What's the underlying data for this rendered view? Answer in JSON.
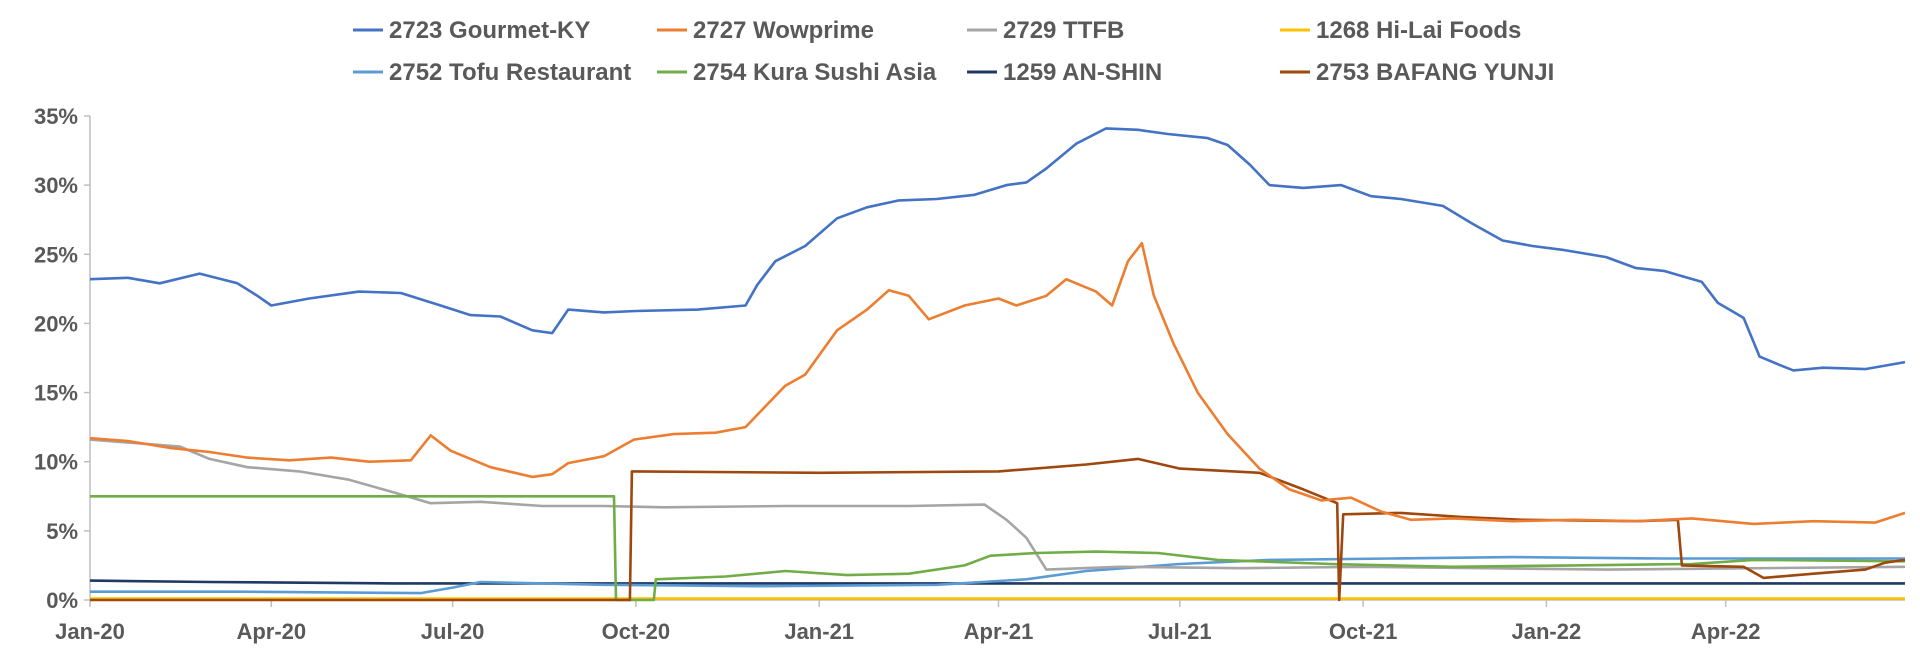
{
  "chart_data": {
    "type": "line",
    "title": "",
    "xlabel": "",
    "ylabel": "",
    "ylim": [
      0,
      35
    ],
    "y_ticks": [
      "0%",
      "5%",
      "10%",
      "15%",
      "20%",
      "25%",
      "30%",
      "35%"
    ],
    "x_ticks": [
      "Jan-20",
      "Apr-20",
      "Jul-20",
      "Oct-20",
      "Jan-21",
      "Apr-21",
      "Jul-21",
      "Oct-21",
      "Jan-22",
      "Apr-22"
    ],
    "xlim": [
      "2020-01-01",
      "2022-06-30"
    ],
    "grid": false,
    "legend": "top",
    "series": [
      {
        "name": "2723 Gourmet-KY",
        "color": "#4472C4",
        "points": [
          [
            "2020-01-01",
            23.2
          ],
          [
            "2020-01-20",
            23.3
          ],
          [
            "2020-02-05",
            22.9
          ],
          [
            "2020-02-25",
            23.6
          ],
          [
            "2020-03-15",
            22.9
          ],
          [
            "2020-03-25",
            22.0
          ],
          [
            "2020-04-01",
            21.3
          ],
          [
            "2020-04-20",
            21.8
          ],
          [
            "2020-05-15",
            22.3
          ],
          [
            "2020-06-05",
            22.2
          ],
          [
            "2020-06-25",
            21.3
          ],
          [
            "2020-07-10",
            20.6
          ],
          [
            "2020-07-25",
            20.5
          ],
          [
            "2020-08-10",
            19.5
          ],
          [
            "2020-08-20",
            19.3
          ],
          [
            "2020-08-28",
            21.0
          ],
          [
            "2020-09-15",
            20.8
          ],
          [
            "2020-10-01",
            20.9
          ],
          [
            "2020-11-01",
            21.0
          ],
          [
            "2020-11-25",
            21.3
          ],
          [
            "2020-12-01",
            22.8
          ],
          [
            "2020-12-10",
            24.5
          ],
          [
            "2020-12-25",
            25.6
          ],
          [
            "2021-01-10",
            27.6
          ],
          [
            "2021-01-25",
            28.4
          ],
          [
            "2021-02-10",
            28.9
          ],
          [
            "2021-03-01",
            29.0
          ],
          [
            "2021-03-20",
            29.3
          ],
          [
            "2021-04-05",
            30.0
          ],
          [
            "2021-04-15",
            30.2
          ],
          [
            "2021-04-25",
            31.2
          ],
          [
            "2021-05-10",
            33.0
          ],
          [
            "2021-05-25",
            34.1
          ],
          [
            "2021-06-10",
            34.0
          ],
          [
            "2021-06-25",
            33.7
          ],
          [
            "2021-07-15",
            33.4
          ],
          [
            "2021-07-25",
            32.9
          ],
          [
            "2021-08-05",
            31.5
          ],
          [
            "2021-08-15",
            30.0
          ],
          [
            "2021-09-01",
            29.8
          ],
          [
            "2021-09-20",
            30.0
          ],
          [
            "2021-10-05",
            29.2
          ],
          [
            "2021-10-20",
            29.0
          ],
          [
            "2021-11-10",
            28.5
          ],
          [
            "2021-11-25",
            27.2
          ],
          [
            "2021-12-10",
            26.0
          ],
          [
            "2021-12-25",
            25.6
          ],
          [
            "2022-01-10",
            25.3
          ],
          [
            "2022-01-31",
            24.8
          ],
          [
            "2022-02-15",
            24.0
          ],
          [
            "2022-03-01",
            23.8
          ],
          [
            "2022-03-20",
            23.0
          ],
          [
            "2022-03-28",
            21.5
          ],
          [
            "2022-04-10",
            20.4
          ],
          [
            "2022-04-18",
            17.6
          ],
          [
            "2022-04-28",
            17.0
          ],
          [
            "2022-05-05",
            16.6
          ],
          [
            "2022-05-20",
            16.8
          ],
          [
            "2022-06-10",
            16.7
          ],
          [
            "2022-06-30",
            17.2
          ]
        ]
      },
      {
        "name": "2727 Wowprime",
        "color": "#ED7D31",
        "points": [
          [
            "2020-01-01",
            11.7
          ],
          [
            "2020-01-20",
            11.5
          ],
          [
            "2020-02-10",
            11.0
          ],
          [
            "2020-03-01",
            10.7
          ],
          [
            "2020-03-20",
            10.3
          ],
          [
            "2020-04-10",
            10.1
          ],
          [
            "2020-05-01",
            10.3
          ],
          [
            "2020-05-20",
            10.0
          ],
          [
            "2020-06-10",
            10.1
          ],
          [
            "2020-06-20",
            11.9
          ],
          [
            "2020-06-30",
            10.8
          ],
          [
            "2020-07-20",
            9.6
          ],
          [
            "2020-08-10",
            8.9
          ],
          [
            "2020-08-20",
            9.1
          ],
          [
            "2020-08-28",
            9.9
          ],
          [
            "2020-09-15",
            10.4
          ],
          [
            "2020-09-30",
            11.6
          ],
          [
            "2020-10-20",
            12.0
          ],
          [
            "2020-11-10",
            12.1
          ],
          [
            "2020-11-25",
            12.5
          ],
          [
            "2020-12-05",
            14.0
          ],
          [
            "2020-12-15",
            15.5
          ],
          [
            "2020-12-25",
            16.3
          ],
          [
            "2021-01-10",
            19.5
          ],
          [
            "2021-01-25",
            21.0
          ],
          [
            "2021-02-05",
            22.4
          ],
          [
            "2021-02-15",
            22.0
          ],
          [
            "2021-02-25",
            20.3
          ],
          [
            "2021-03-15",
            21.3
          ],
          [
            "2021-04-01",
            21.8
          ],
          [
            "2021-04-10",
            21.3
          ],
          [
            "2021-04-25",
            22.0
          ],
          [
            "2021-05-05",
            23.2
          ],
          [
            "2021-05-20",
            22.3
          ],
          [
            "2021-05-28",
            21.3
          ],
          [
            "2021-06-05",
            24.5
          ],
          [
            "2021-06-12",
            25.8
          ],
          [
            "2021-06-18",
            22.0
          ],
          [
            "2021-06-28",
            18.5
          ],
          [
            "2021-07-10",
            15.0
          ],
          [
            "2021-07-25",
            12.0
          ],
          [
            "2021-08-10",
            9.5
          ],
          [
            "2021-08-25",
            8.0
          ],
          [
            "2021-09-10",
            7.2
          ],
          [
            "2021-09-25",
            7.4
          ],
          [
            "2021-10-10",
            6.4
          ],
          [
            "2021-10-25",
            5.8
          ],
          [
            "2021-11-15",
            5.9
          ],
          [
            "2021-12-15",
            5.7
          ],
          [
            "2022-01-15",
            5.8
          ],
          [
            "2022-02-15",
            5.7
          ],
          [
            "2022-03-15",
            5.9
          ],
          [
            "2022-04-15",
            5.5
          ],
          [
            "2022-05-15",
            5.7
          ],
          [
            "2022-06-15",
            5.6
          ],
          [
            "2022-06-30",
            6.3
          ]
        ]
      },
      {
        "name": "2729 TTFB",
        "color": "#A5A5A5",
        "points": [
          [
            "2020-01-01",
            11.6
          ],
          [
            "2020-02-15",
            11.1
          ],
          [
            "2020-03-01",
            10.2
          ],
          [
            "2020-03-20",
            9.6
          ],
          [
            "2020-04-15",
            9.3
          ],
          [
            "2020-05-10",
            8.7
          ],
          [
            "2020-06-01",
            7.8
          ],
          [
            "2020-06-20",
            7.0
          ],
          [
            "2020-07-15",
            7.1
          ],
          [
            "2020-08-15",
            6.8
          ],
          [
            "2020-09-15",
            6.8
          ],
          [
            "2020-10-15",
            6.7
          ],
          [
            "2020-12-15",
            6.8
          ],
          [
            "2021-02-15",
            6.8
          ],
          [
            "2021-03-25",
            6.9
          ],
          [
            "2021-04-05",
            5.8
          ],
          [
            "2021-04-15",
            4.5
          ],
          [
            "2021-04-25",
            2.2
          ],
          [
            "2021-06-01",
            2.4
          ],
          [
            "2021-08-01",
            2.3
          ],
          [
            "2021-10-01",
            2.4
          ],
          [
            "2021-12-01",
            2.3
          ],
          [
            "2022-02-01",
            2.2
          ],
          [
            "2022-06-30",
            2.4
          ]
        ]
      },
      {
        "name": "1268 Hi-Lai Foods",
        "color": "#FFC000",
        "points": [
          [
            "2020-01-01",
            0.1
          ],
          [
            "2021-01-01",
            0.1
          ],
          [
            "2022-01-01",
            0.1
          ],
          [
            "2022-06-30",
            0.1
          ]
        ]
      },
      {
        "name": "2752 Tofu Restaurant",
        "color": "#5B9BD5",
        "points": [
          [
            "2020-01-01",
            0.6
          ],
          [
            "2020-03-15",
            0.6
          ],
          [
            "2020-06-15",
            0.5
          ],
          [
            "2020-07-01",
            0.9
          ],
          [
            "2020-07-15",
            1.3
          ],
          [
            "2020-08-15",
            1.2
          ],
          [
            "2020-09-15",
            1.1
          ],
          [
            "2020-12-01",
            1.0
          ],
          [
            "2021-03-01",
            1.1
          ],
          [
            "2021-04-15",
            1.5
          ],
          [
            "2021-05-15",
            2.1
          ],
          [
            "2021-07-01",
            2.6
          ],
          [
            "2021-08-15",
            2.9
          ],
          [
            "2021-10-15",
            3.0
          ],
          [
            "2021-12-15",
            3.1
          ],
          [
            "2022-03-01",
            3.0
          ],
          [
            "2022-06-30",
            3.0
          ]
        ]
      },
      {
        "name": "2754 Kura Sushi Asia",
        "color": "#70AD47",
        "points": [
          [
            "2020-01-01",
            7.5
          ],
          [
            "2020-09-20",
            7.5
          ],
          [
            "2020-09-21",
            0
          ],
          [
            "2020-10-10",
            0
          ],
          [
            "2020-10-11",
            1.5
          ],
          [
            "2020-11-15",
            1.7
          ],
          [
            "2020-12-15",
            2.1
          ],
          [
            "2021-01-15",
            1.8
          ],
          [
            "2021-02-15",
            1.9
          ],
          [
            "2021-03-15",
            2.5
          ],
          [
            "2021-03-28",
            3.2
          ],
          [
            "2021-04-20",
            3.4
          ],
          [
            "2021-05-20",
            3.5
          ],
          [
            "2021-06-20",
            3.4
          ],
          [
            "2021-07-20",
            2.9
          ],
          [
            "2021-09-15",
            2.6
          ],
          [
            "2021-11-15",
            2.4
          ],
          [
            "2022-01-15",
            2.5
          ],
          [
            "2022-03-15",
            2.6
          ],
          [
            "2022-04-15",
            2.9
          ],
          [
            "2022-06-30",
            2.8
          ]
        ]
      },
      {
        "name": "1259 AN-SHIN",
        "color": "#1F3864",
        "points": [
          [
            "2020-01-01",
            1.4
          ],
          [
            "2020-03-01",
            1.3
          ],
          [
            "2020-06-01",
            1.2
          ],
          [
            "2020-12-01",
            1.2
          ],
          [
            "2021-06-01",
            1.2
          ],
          [
            "2021-12-01",
            1.2
          ],
          [
            "2022-06-30",
            1.2
          ]
        ]
      },
      {
        "name": "2753 BAFANG YUNJI",
        "color": "#9E480E",
        "points": [
          [
            "2020-01-01",
            0
          ],
          [
            "2020-09-28",
            0
          ],
          [
            "2020-09-29",
            9.3
          ],
          [
            "2021-01-01",
            9.2
          ],
          [
            "2021-04-01",
            9.3
          ],
          [
            "2021-05-15",
            9.8
          ],
          [
            "2021-06-10",
            10.2
          ],
          [
            "2021-07-01",
            9.5
          ],
          [
            "2021-08-10",
            9.2
          ],
          [
            "2021-09-01",
            8.0
          ],
          [
            "2021-09-18",
            7.0
          ],
          [
            "2021-09-19",
            0
          ],
          [
            "2021-09-21",
            6.2
          ],
          [
            "2021-10-20",
            6.3
          ],
          [
            "2021-11-20",
            6.0
          ],
          [
            "2021-12-20",
            5.8
          ],
          [
            "2022-02-15",
            5.7
          ],
          [
            "2022-03-08",
            5.8
          ],
          [
            "2022-03-10",
            2.5
          ],
          [
            "2022-04-10",
            2.4
          ],
          [
            "2022-04-20",
            1.6
          ],
          [
            "2022-05-15",
            1.9
          ],
          [
            "2022-06-10",
            2.2
          ],
          [
            "2022-06-20",
            2.7
          ],
          [
            "2022-06-30",
            2.9
          ]
        ]
      }
    ]
  }
}
